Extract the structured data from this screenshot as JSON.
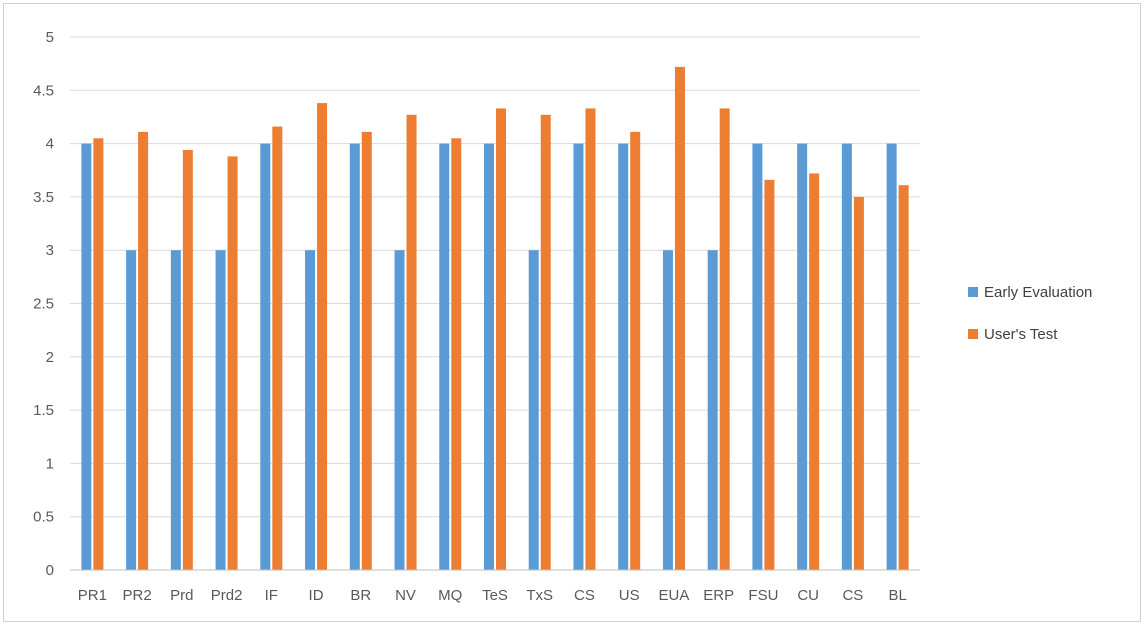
{
  "chart_data": {
    "type": "bar",
    "categories": [
      "PR1",
      "PR2",
      "Prd",
      "Prd2",
      "IF",
      "ID",
      "BR",
      "NV",
      "MQ",
      "TeS",
      "TxS",
      "CS",
      "US",
      "EUA",
      "ERP",
      "FSU",
      "CU",
      "CS",
      "BL"
    ],
    "series": [
      {
        "name": "Early Evaluation",
        "color": "#5b9bd5",
        "values": [
          4,
          3,
          3,
          3,
          4,
          3,
          4,
          3,
          4,
          4,
          3,
          4,
          4,
          3,
          3,
          4,
          4,
          4,
          4
        ]
      },
      {
        "name": "User's Test",
        "color": "#ed7d31",
        "values": [
          4.05,
          4.11,
          3.94,
          3.88,
          4.16,
          4.38,
          4.11,
          4.27,
          4.05,
          4.33,
          4.27,
          4.33,
          4.11,
          4.72,
          4.33,
          3.66,
          3.72,
          3.5,
          3.61
        ]
      }
    ],
    "ylim": [
      0,
      5
    ],
    "yticks": [
      "0",
      "0.5",
      "1",
      "1.5",
      "2",
      "2.5",
      "3",
      "3.5",
      "4",
      "4.5",
      "5"
    ],
    "grid": true,
    "legend": "right",
    "title": "",
    "xlabel": "",
    "ylabel": ""
  }
}
